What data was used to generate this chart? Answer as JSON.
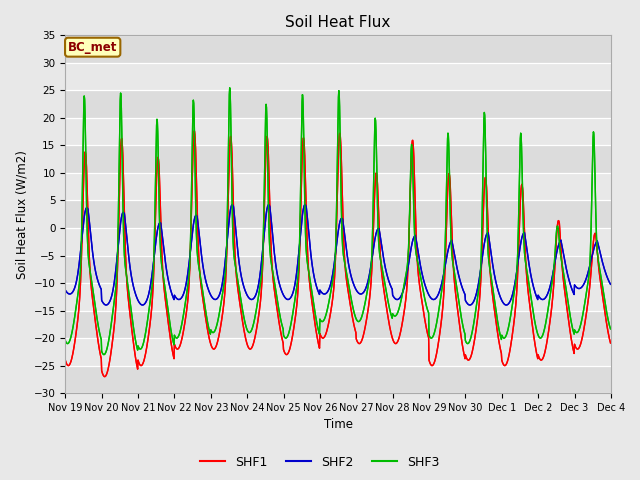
{
  "title": "Soil Heat Flux",
  "ylabel": "Soil Heat Flux (W/m2)",
  "xlabel": "Time",
  "ylim": [
    -30,
    35
  ],
  "yticks": [
    -30,
    -25,
    -20,
    -15,
    -10,
    -5,
    0,
    5,
    10,
    15,
    20,
    25,
    30,
    35
  ],
  "colors": {
    "SHF1": "#FF0000",
    "SHF2": "#0000CC",
    "SHF3": "#00BB00"
  },
  "legend_label": "BC_met",
  "bg_color": "#E8E8E8",
  "plot_bg": "#DCDCDC",
  "linewidth": 1.0,
  "xtick_labels": [
    "Nov 19",
    "Nov 20",
    "Nov 21",
    "Nov 22",
    "Nov 23",
    "Nov 24",
    "Nov 25",
    "Nov 26",
    "Nov 27",
    "Nov 28",
    "Nov 29",
    "Nov 30",
    "Dec 1",
    "Dec 2",
    "Dec 3",
    "Dec 4"
  ]
}
